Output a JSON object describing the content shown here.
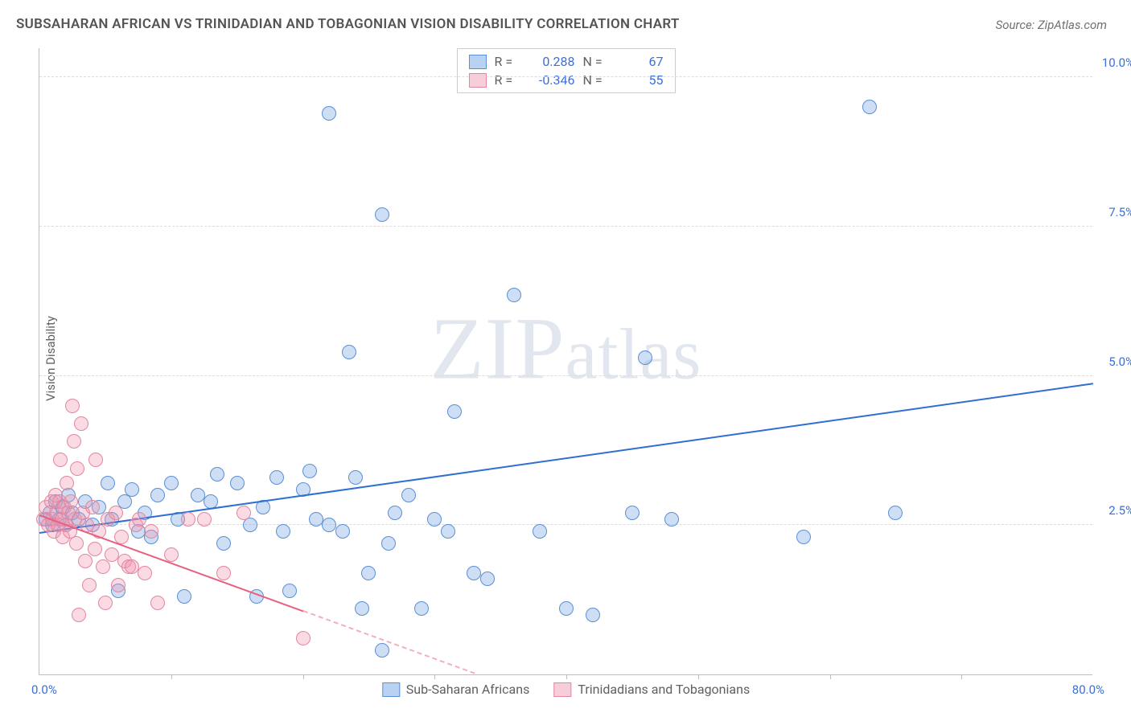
{
  "title": "SUBSAHARAN AFRICAN VS TRINIDADIAN AND TOBAGONIAN VISION DISABILITY CORRELATION CHART",
  "source_label": "Source:",
  "source_name": "ZipAtlas.com",
  "ylabel": "Vision Disability",
  "watermark": "ZIPatlas",
  "chart": {
    "type": "scatter",
    "xlim": [
      0,
      80
    ],
    "ylim": [
      0,
      10.5
    ],
    "x_tick_step": 10,
    "y_ticks": [
      2.5,
      5.0,
      7.5,
      10.0
    ],
    "y_tick_labels": [
      "2.5%",
      "5.0%",
      "7.5%",
      "10.0%"
    ],
    "x_min_label": "0.0%",
    "x_max_label": "80.0%",
    "background_color": "#ffffff",
    "grid_color": "#dcdcdc",
    "axis_color": "#bdbdbd",
    "marker_radius": 9,
    "marker_stroke_width": 1.5,
    "trend_line_width": 2
  },
  "series": [
    {
      "name": "Sub-Saharan Africans",
      "fill": "rgba(116,164,227,0.35)",
      "stroke": "#5b8fd6",
      "swatch_fill": "#b9d2f1",
      "swatch_stroke": "#5b8fd6",
      "trend_color": "#2f6fd0",
      "R": "0.288",
      "N": "67",
      "trend": {
        "x1": 0,
        "y1": 2.35,
        "x2": 80,
        "y2": 4.85,
        "x_solid_max": 80
      },
      "points": [
        [
          0.5,
          2.6
        ],
        [
          0.8,
          2.7
        ],
        [
          1.0,
          2.5
        ],
        [
          1.2,
          2.9
        ],
        [
          1.5,
          2.6
        ],
        [
          1.8,
          2.8
        ],
        [
          2.0,
          2.5
        ],
        [
          2.2,
          3.0
        ],
        [
          2.5,
          2.7
        ],
        [
          3.0,
          2.6
        ],
        [
          3.5,
          2.9
        ],
        [
          4.0,
          2.5
        ],
        [
          4.5,
          2.8
        ],
        [
          5.2,
          3.2
        ],
        [
          5.5,
          2.6
        ],
        [
          6,
          1.4
        ],
        [
          6.5,
          2.9
        ],
        [
          7.0,
          3.1
        ],
        [
          7.5,
          2.4
        ],
        [
          8,
          2.7
        ],
        [
          8.5,
          2.3
        ],
        [
          9,
          3.0
        ],
        [
          10,
          3.2
        ],
        [
          10.5,
          2.6
        ],
        [
          11,
          1.3
        ],
        [
          12,
          3.0
        ],
        [
          13,
          2.9
        ],
        [
          13.5,
          3.35
        ],
        [
          14,
          2.2
        ],
        [
          15,
          3.2
        ],
        [
          16,
          2.5
        ],
        [
          16.5,
          1.3
        ],
        [
          17,
          2.8
        ],
        [
          18,
          3.3
        ],
        [
          18.5,
          2.4
        ],
        [
          19,
          1.4
        ],
        [
          20,
          3.1
        ],
        [
          20.5,
          3.4
        ],
        [
          21,
          2.6
        ],
        [
          22,
          2.5
        ],
        [
          22,
          9.4
        ],
        [
          23,
          2.4
        ],
        [
          23.5,
          5.4
        ],
        [
          24,
          3.3
        ],
        [
          24.5,
          1.1
        ],
        [
          25,
          1.7
        ],
        [
          26,
          0.4
        ],
        [
          26.5,
          2.2
        ],
        [
          26,
          7.7
        ],
        [
          27,
          2.7
        ],
        [
          28,
          3.0
        ],
        [
          29,
          1.1
        ],
        [
          30,
          2.6
        ],
        [
          31,
          2.4
        ],
        [
          31.5,
          4.4
        ],
        [
          33,
          1.7
        ],
        [
          34,
          1.6
        ],
        [
          36,
          6.35
        ],
        [
          38,
          2.4
        ],
        [
          40,
          1.1
        ],
        [
          42,
          1.0
        ],
        [
          45,
          2.7
        ],
        [
          46,
          5.3
        ],
        [
          48,
          2.6
        ],
        [
          58,
          2.3
        ],
        [
          63,
          9.5
        ],
        [
          65,
          2.7
        ]
      ]
    },
    {
      "name": "Trinidadians and Tobagonians",
      "fill": "rgba(240,150,175,0.35)",
      "stroke": "#e4869f",
      "swatch_fill": "#f6cdd8",
      "swatch_stroke": "#e4869f",
      "trend_color": "#e8607f",
      "R": "-0.346",
      "N": "55",
      "trend": {
        "x1": 0,
        "y1": 2.65,
        "x2": 33,
        "y2": 0.0,
        "x_solid_max": 20
      },
      "points": [
        [
          0.3,
          2.6
        ],
        [
          0.5,
          2.8
        ],
        [
          0.7,
          2.5
        ],
        [
          0.9,
          2.9
        ],
        [
          1.0,
          2.6
        ],
        [
          1.1,
          2.4
        ],
        [
          1.2,
          3.0
        ],
        [
          1.3,
          2.7
        ],
        [
          1.4,
          2.5
        ],
        [
          1.5,
          2.9
        ],
        [
          1.6,
          3.6
        ],
        [
          1.7,
          2.6
        ],
        [
          1.8,
          2.3
        ],
        [
          1.9,
          2.8
        ],
        [
          2.0,
          2.5
        ],
        [
          2.1,
          3.2
        ],
        [
          2.2,
          2.7
        ],
        [
          2.3,
          2.4
        ],
        [
          2.4,
          2.9
        ],
        [
          2.5,
          4.5
        ],
        [
          2.6,
          3.9
        ],
        [
          2.7,
          2.6
        ],
        [
          2.8,
          2.2
        ],
        [
          2.9,
          3.45
        ],
        [
          3.0,
          1.0
        ],
        [
          3.2,
          4.2
        ],
        [
          3.3,
          2.7
        ],
        [
          3.5,
          1.9
        ],
        [
          3.6,
          2.5
        ],
        [
          3.8,
          1.5
        ],
        [
          4.0,
          2.8
        ],
        [
          4.2,
          2.1
        ],
        [
          4.3,
          3.6
        ],
        [
          4.5,
          2.4
        ],
        [
          4.8,
          1.8
        ],
        [
          5.0,
          1.2
        ],
        [
          5.2,
          2.6
        ],
        [
          5.5,
          2.0
        ],
        [
          5.8,
          2.7
        ],
        [
          6.0,
          1.5
        ],
        [
          6.2,
          2.3
        ],
        [
          6.5,
          1.9
        ],
        [
          6.8,
          1.8
        ],
        [
          7.0,
          1.8
        ],
        [
          7.3,
          2.5
        ],
        [
          7.6,
          2.6
        ],
        [
          8.0,
          1.7
        ],
        [
          8.5,
          2.4
        ],
        [
          9,
          1.2
        ],
        [
          10,
          2.0
        ],
        [
          11.3,
          2.6
        ],
        [
          12.5,
          2.6
        ],
        [
          14,
          1.7
        ],
        [
          15.5,
          2.7
        ],
        [
          20,
          0.6
        ]
      ]
    }
  ],
  "legend_top": {
    "r_label": "R  =",
    "n_label": "N  ="
  }
}
